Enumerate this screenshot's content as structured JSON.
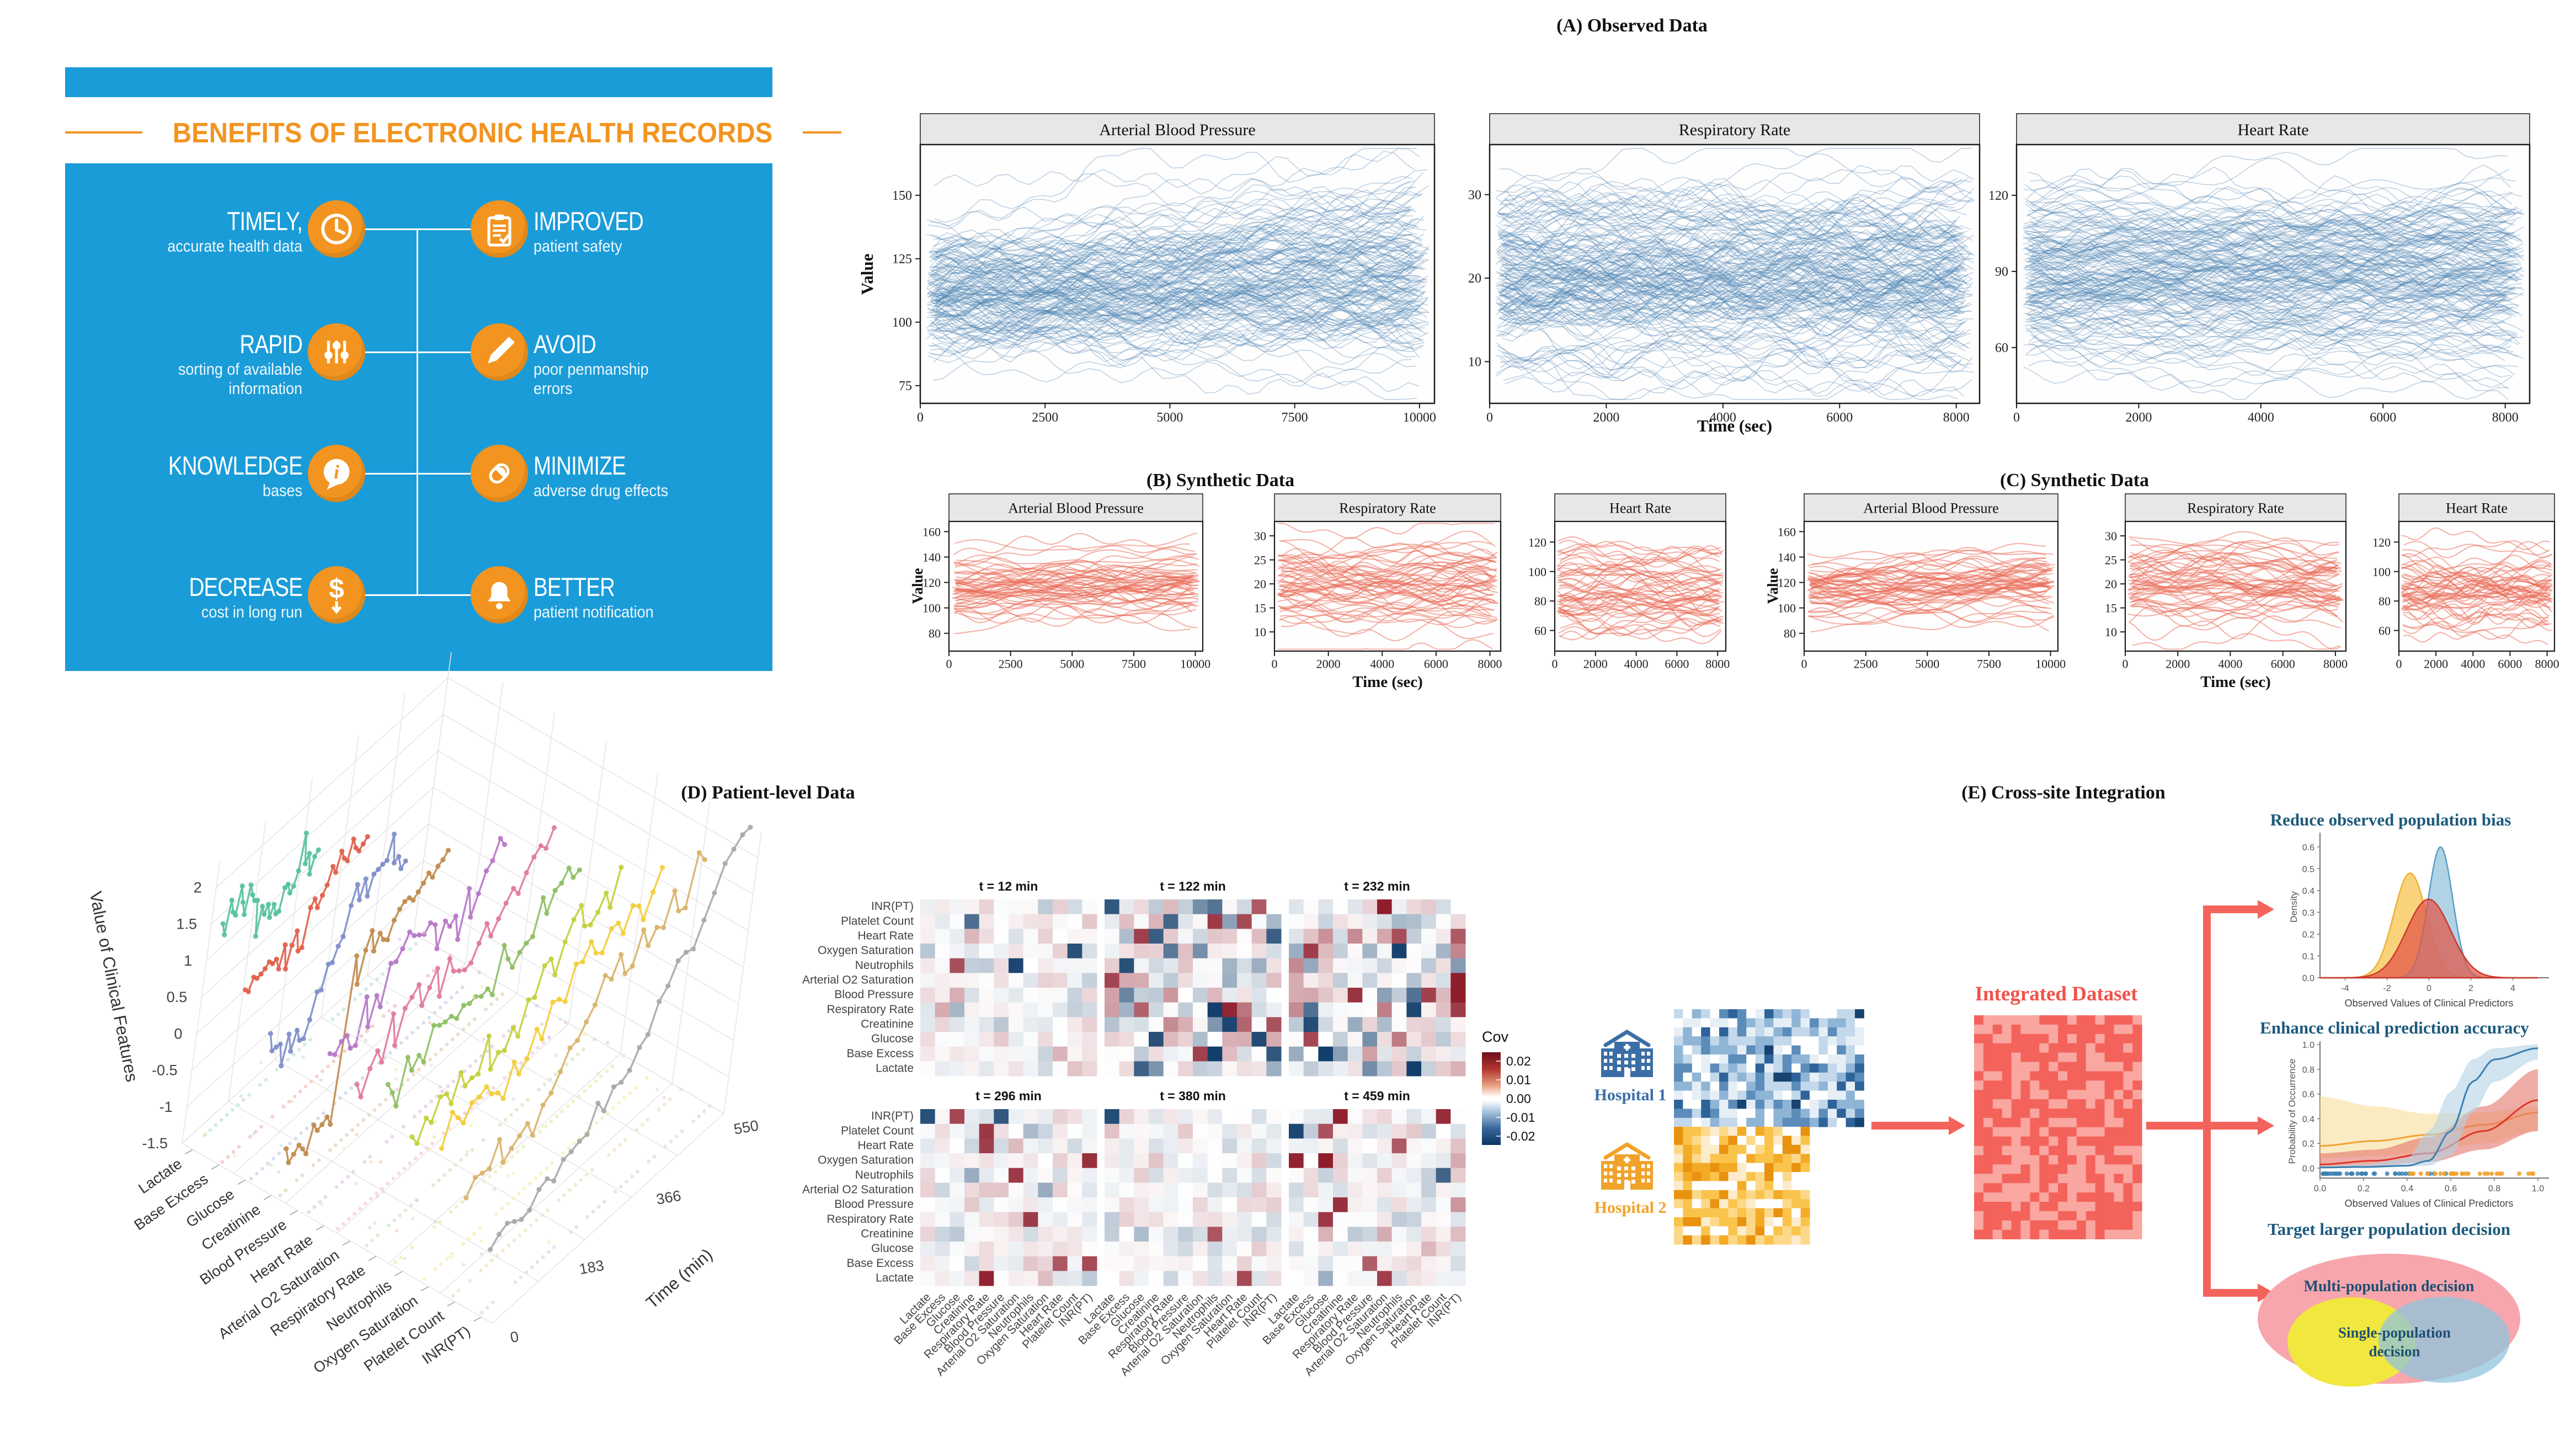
{
  "infographic": {
    "header_title": "BENEFITS OF ELECTRONIC HEALTH RECORDS",
    "bg_color": "#1a9cd8",
    "accent_color": "#f2941f",
    "items_left": [
      {
        "title": "TIMELY,",
        "subtitle": "accurate health data",
        "icon": "clock-icon"
      },
      {
        "title": "RAPID",
        "subtitle": "sorting of available\ninformation",
        "icon": "sliders-icon"
      },
      {
        "title": "KNOWLEDGE",
        "subtitle": "bases",
        "icon": "info-icon"
      },
      {
        "title": "DECREASE",
        "subtitle": "cost in long run",
        "icon": "dollar-icon"
      }
    ],
    "items_right": [
      {
        "title": "IMPROVED",
        "subtitle": "patient safety",
        "icon": "clipboard-icon"
      },
      {
        "title": "AVOID",
        "subtitle": "poor penmanship\nerrors",
        "icon": "pencil-icon"
      },
      {
        "title": "MINIMIZE",
        "subtitle": "adverse drug effects",
        "icon": "pill-icon"
      },
      {
        "title": "BETTER",
        "subtitle": "patient notification",
        "icon": "bell-icon"
      }
    ]
  },
  "panels": {
    "a_title": "(A) Observed Data",
    "b_title": "(B) Synthetic Data",
    "c_title": "(C) Synthetic Data",
    "d_title": "(D) Patient-level Data",
    "e_title": "(E) Cross-site Integration"
  },
  "e_flow": {
    "hospital1_label": "Hospital 1",
    "hospital2_label": "Hospital 2",
    "hospital1_color": "#3c6ea5",
    "hospital2_color": "#f0a32a",
    "integrated_label": "Integrated Dataset",
    "integrated_color": "#f0524a",
    "arrow_color": "#f4635b",
    "heading_color": "#1d5a7c"
  },
  "chart_data": [
    {
      "id": "obs_abp",
      "panel": "A",
      "type": "line-spaghetti",
      "title": "Arterial Blood Pressure",
      "xlabel": "Time (sec)",
      "ylabel": "Value",
      "x_ticks": [
        0,
        2500,
        5000,
        7500,
        10000
      ],
      "y_ticks": [
        75,
        100,
        125,
        150
      ],
      "xlim": [
        0,
        10300
      ],
      "ylim": [
        68,
        170
      ],
      "n_series": 160,
      "mean": 112,
      "sd": 12,
      "wiggle": 8,
      "fan": 26,
      "drift": 8,
      "color": "#4d83b3",
      "opacity": 0.34,
      "seed": 11
    },
    {
      "id": "obs_rr",
      "panel": "A",
      "type": "line-spaghetti",
      "title": "Respiratory Rate",
      "xlabel": "Time (sec)",
      "ylabel": "",
      "x_ticks": [
        0,
        2000,
        4000,
        6000,
        8000
      ],
      "y_ticks": [
        10,
        20,
        30
      ],
      "xlim": [
        0,
        8400
      ],
      "ylim": [
        5,
        36
      ],
      "n_series": 170,
      "mean": 20.5,
      "sd": 5.2,
      "wiggle": 2.6,
      "fan": 4,
      "drift": 0,
      "color": "#4d83b3",
      "opacity": 0.34,
      "seed": 12
    },
    {
      "id": "obs_hr",
      "panel": "A",
      "type": "line-spaghetti",
      "title": "Heart Rate",
      "xlabel": "",
      "ylabel": "",
      "x_ticks": [
        0,
        2000,
        4000,
        6000,
        8000
      ],
      "y_ticks": [
        60,
        90,
        120
      ],
      "xlim": [
        0,
        8400
      ],
      "ylim": [
        38,
        140
      ],
      "n_series": 170,
      "mean": 88,
      "sd": 17,
      "wiggle": 7,
      "fan": 10,
      "drift": 0,
      "color": "#4d83b3",
      "opacity": 0.34,
      "seed": 13
    },
    {
      "id": "syn_b_abp",
      "panel": "B",
      "type": "line-spaghetti",
      "title": "Arterial Blood Pressure",
      "xlabel": "Time (sec)",
      "ylabel": "Value",
      "x_ticks": [
        0,
        2500,
        5000,
        7500,
        10000
      ],
      "y_ticks": [
        80,
        100,
        120,
        140,
        160
      ],
      "xlim": [
        0,
        10300
      ],
      "ylim": [
        66,
        168
      ],
      "n_series": 55,
      "mean": 114,
      "sd": 12,
      "wiggle": 7,
      "fan": 12,
      "drift": 6,
      "color": "#e96a55",
      "opacity": 0.5,
      "seed": 21,
      "smooth": true
    },
    {
      "id": "syn_b_rr",
      "panel": "B",
      "type": "line-spaghetti",
      "title": "Respiratory Rate",
      "xlabel": "Time (sec)",
      "ylabel": "",
      "x_ticks": [
        0,
        2000,
        4000,
        6000,
        8000
      ],
      "y_ticks": [
        10,
        15,
        20,
        25,
        30
      ],
      "xlim": [
        0,
        8400
      ],
      "ylim": [
        6,
        33
      ],
      "n_series": 55,
      "mean": 20,
      "sd": 4.2,
      "wiggle": 2.2,
      "fan": 2,
      "drift": 0,
      "color": "#e96a55",
      "opacity": 0.5,
      "seed": 22,
      "smooth": true
    },
    {
      "id": "syn_b_hr",
      "panel": "B",
      "type": "line-spaghetti",
      "title": "Heart Rate",
      "xlabel": "",
      "ylabel": "",
      "x_ticks": [
        0,
        2000,
        4000,
        6000,
        8000
      ],
      "y_ticks": [
        60,
        80,
        100,
        120
      ],
      "xlim": [
        0,
        8400
      ],
      "ylim": [
        46,
        134
      ],
      "n_series": 55,
      "mean": 85,
      "sd": 15,
      "wiggle": 6.5,
      "fan": 6,
      "drift": 0,
      "color": "#e96a55",
      "opacity": 0.5,
      "seed": 23,
      "smooth": true
    },
    {
      "id": "syn_c_abp",
      "panel": "C",
      "type": "line-spaghetti",
      "title": "Arterial Blood Pressure",
      "xlabel": "Time (sec)",
      "ylabel": "Value",
      "x_ticks": [
        0,
        2500,
        5000,
        7500,
        10000
      ],
      "y_ticks": [
        80,
        100,
        120,
        140,
        160
      ],
      "xlim": [
        0,
        10300
      ],
      "ylim": [
        66,
        168
      ],
      "n_series": 55,
      "mean": 114,
      "sd": 12,
      "wiggle": 7,
      "fan": 12,
      "drift": 6,
      "color": "#e96a55",
      "opacity": 0.5,
      "seed": 31,
      "smooth": true
    },
    {
      "id": "syn_c_rr",
      "panel": "C",
      "type": "line-spaghetti",
      "title": "Respiratory Rate",
      "xlabel": "Time (sec)",
      "ylabel": "",
      "x_ticks": [
        0,
        2000,
        4000,
        6000,
        8000
      ],
      "y_ticks": [
        10,
        15,
        20,
        25,
        30
      ],
      "xlim": [
        0,
        8400
      ],
      "ylim": [
        6,
        33
      ],
      "n_series": 55,
      "mean": 20,
      "sd": 4.2,
      "wiggle": 2.2,
      "fan": 2,
      "drift": 0,
      "color": "#e96a55",
      "opacity": 0.5,
      "seed": 32,
      "smooth": true
    },
    {
      "id": "syn_c_hr",
      "panel": "C",
      "type": "line-spaghetti",
      "title": "Heart Rate",
      "xlabel": "",
      "ylabel": "",
      "x_ticks": [
        0,
        2000,
        4000,
        6000,
        8000
      ],
      "y_ticks": [
        60,
        80,
        100,
        120
      ],
      "xlim": [
        0,
        8400
      ],
      "ylim": [
        46,
        134
      ],
      "n_series": 55,
      "mean": 85,
      "sd": 15,
      "wiggle": 6.5,
      "fan": 6,
      "drift": 0,
      "color": "#e96a55",
      "opacity": 0.5,
      "seed": 33,
      "smooth": true
    },
    {
      "id": "patient3d",
      "type": "3d-lines",
      "zlabel": "Value of Clinical Features",
      "time_label": "Time (min)",
      "time_ticks": [
        0,
        183,
        366,
        550
      ],
      "z_ticks": [
        2,
        1.5,
        1,
        0.5,
        0,
        -0.5,
        -1,
        -1.5
      ],
      "features": [
        "Lactate",
        "Base Excess",
        "Glucose",
        "Creatinine",
        "Blood Pressure",
        "Heart Rate",
        "Arterial O2 Saturation",
        "Respiratory Rate",
        "Neutrophils",
        "Oxygen Saturation",
        "Platelet Count",
        "INR(PT)"
      ],
      "series": [
        {
          "color": "#56c1a0",
          "start": 1.55,
          "end": 1.05,
          "span": 0.42
        },
        {
          "color": "#e0614b",
          "start": 0.75,
          "end": 1.6,
          "span": 0.5
        },
        {
          "color": "#7f8fc9",
          "start": 0.05,
          "end": 1.85,
          "span": 0.55
        },
        {
          "color": "#c08b4e",
          "start": -0.95,
          "end": 1.5,
          "span": 0.6,
          "jump": 0.35
        },
        {
          "color": "#b777c8",
          "start": 0.85,
          "end": 1.5,
          "span": 0.72
        },
        {
          "color": "#e2799f",
          "start": 0.6,
          "end": 1.5,
          "span": 0.8
        },
        {
          "color": "#8fbf63",
          "start": 0.45,
          "end": 1.35,
          "span": 0.8
        },
        {
          "color": "#c3d03c",
          "start": 0.1,
          "end": 1.3,
          "span": 0.85
        },
        {
          "color": "#f3cd3a",
          "start": 0.35,
          "end": 1.55,
          "span": 0.9
        },
        {
          "color": "#d9b36a",
          "start": -0.15,
          "end": 1.9,
          "span": 0.95
        },
        {
          "color": "#a9a9a9",
          "start": -0.55,
          "end": 2.3,
          "span": 1.0,
          "spike": true
        }
      ],
      "seed": 7
    },
    {
      "id": "cov_heatmaps",
      "type": "heatmap-grid",
      "legend_title": "Cov",
      "times": [
        "t = 12 min",
        "t = 122 min",
        "t = 232 min",
        "t = 296 min",
        "t = 380 min",
        "t = 459 min"
      ],
      "row_labels": [
        "INR(PT)",
        "Platelet Count",
        "Heart Rate",
        "Oxygen Saturation",
        "Neutrophils",
        "Arterial O2 Saturation",
        "Blood Pressure",
        "Respiratory Rate",
        "Creatinine",
        "Glucose",
        "Base Excess",
        "Lactate"
      ],
      "col_labels": [
        "Lactate",
        "Base Excess",
        "Glucose",
        "Creatinine",
        "Respiratory Rate",
        "Blood Pressure",
        "Arterial O2 Saturation",
        "Neutrophils",
        "Oxygen Saturation",
        "Heart Rate",
        "Platelet Count",
        "INR(PT)"
      ],
      "legend_ticks": [
        "0.02",
        "0.01",
        "0.00",
        "-0.01",
        "-0.02"
      ],
      "intensities": [
        0.5,
        1.05,
        0.95,
        0.55,
        0.4,
        0.55
      ],
      "extreme_prob": [
        0.05,
        0.2,
        0.17,
        0.07,
        0.04,
        0.08
      ],
      "pos_color": "#8f1d2c",
      "neg_color": "#123e6b",
      "seed": 41
    },
    {
      "id": "bias_density",
      "type": "area",
      "title": "Reduce observed population bias",
      "xlabel": "Observed Values of Clinical Predictors",
      "ylabel": "Density",
      "x_ticks": [
        -4,
        -2,
        0,
        2,
        4
      ],
      "y_ticks": [
        0.0,
        0.1,
        0.2,
        0.3,
        0.4,
        0.5,
        0.6
      ],
      "xlim": [
        -5.2,
        5.2
      ],
      "ylim": [
        0,
        0.65
      ],
      "series": [
        {
          "name": "Hospital 2",
          "fill": "#f6c24a",
          "stroke": "#edb02e",
          "mean": -0.9,
          "sd": 0.78,
          "peak": 0.48
        },
        {
          "name": "Hospital 1",
          "fill": "#93c2dd",
          "stroke": "#5b9ec4",
          "mean": 0.55,
          "sd": 0.58,
          "peak": 0.6
        },
        {
          "name": "Integrated",
          "fill": "#e25548",
          "stroke": "#cc3a2c",
          "mean": -0.02,
          "sd": 1.05,
          "peak": 0.36
        }
      ]
    },
    {
      "id": "prediction",
      "type": "line-band",
      "title": "Enhance clinical prediction accuracy",
      "xlabel": "Observed Values of Clinical Predictors",
      "ylabel": "Probability of Occurrence",
      "x_ticks": [
        0.0,
        0.2,
        0.4,
        0.6,
        0.8,
        1.0
      ],
      "y_ticks": [
        0.0,
        0.2,
        0.4,
        0.6,
        0.8,
        1.0
      ],
      "bands": [
        {
          "name": "Hospital 2",
          "line_color": "#f0a330",
          "fill": "#f8dd9b",
          "x": [
            0,
            0.25,
            0.5,
            0.75,
            1
          ],
          "line": [
            0.18,
            0.22,
            0.27,
            0.35,
            0.45
          ],
          "lo": [
            0.08,
            0.1,
            0.13,
            0.2,
            0.3
          ],
          "hi": [
            0.58,
            0.5,
            0.44,
            0.45,
            0.5
          ]
        },
        {
          "name": "Integrated",
          "line_color": "#e03528",
          "fill": "#e4756a",
          "x": [
            0,
            0.25,
            0.5,
            0.75,
            1
          ],
          "line": [
            0.03,
            0.06,
            0.12,
            0.3,
            0.55
          ],
          "lo": [
            0.01,
            0.02,
            0.05,
            0.15,
            0.3
          ],
          "hi": [
            0.12,
            0.15,
            0.25,
            0.5,
            0.8
          ]
        },
        {
          "name": "Hospital 1",
          "line_color": "#3c7fb0",
          "fill": "#b3d2e4",
          "x": [
            0,
            0.2,
            0.4,
            0.5,
            0.6,
            0.7,
            0.8,
            1
          ],
          "line": [
            0.005,
            0.01,
            0.02,
            0.06,
            0.3,
            0.7,
            0.88,
            0.97
          ],
          "lo": [
            0,
            0,
            0.01,
            0.02,
            0.1,
            0.45,
            0.7,
            0.88
          ],
          "hi": [
            0.02,
            0.03,
            0.08,
            0.3,
            0.62,
            0.88,
            0.97,
            1.0
          ]
        }
      ],
      "rug_colors": [
        "#3c7fb0",
        "#f0a330"
      ],
      "seed": 55
    },
    {
      "id": "decision_venn",
      "type": "venn",
      "title": "Target larger population decision",
      "outer_label": "Multi-population decision",
      "inner_label": "Single-population\ndecision",
      "outer_color": "#f7a6ad",
      "left_color": "#f2e73e",
      "right_color": "#8fc4dc",
      "text_color": "#1d4f74"
    }
  ]
}
